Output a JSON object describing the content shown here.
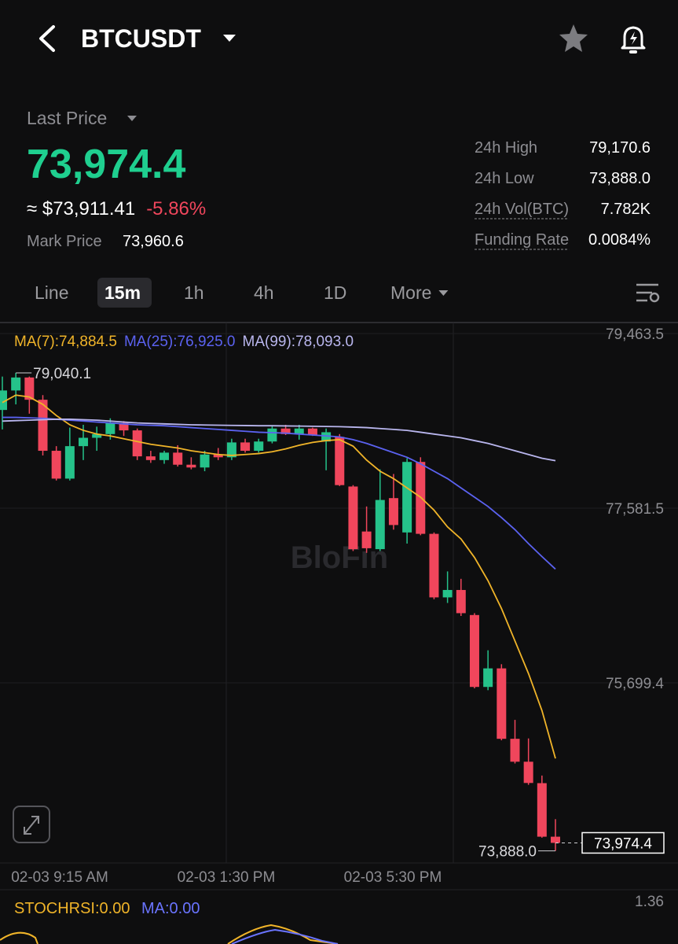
{
  "header": {
    "symbol": "BTCUSDT"
  },
  "ticker": {
    "last_price_label": "Last Price",
    "last_price": "73,974.4",
    "usd_price": "≈ $73,911.41",
    "change": "-5.86%",
    "mark_price_label": "Mark Price",
    "mark_price": "73,960.6"
  },
  "stats": [
    {
      "label": "24h High",
      "value": "79,170.6"
    },
    {
      "label": "24h Low",
      "value": "73,888.0"
    },
    {
      "label": "24h Vol(BTC)",
      "value": "7.782K"
    },
    {
      "label": "Funding Rate",
      "value": "0.0084%"
    }
  ],
  "tabs": [
    "Line",
    "15m",
    "1h",
    "4h",
    "1D",
    "More"
  ],
  "active_tab": 1,
  "chart_data": {
    "type": "candlestick",
    "watermark": "BloFin",
    "up_color": "#25c28a",
    "down_color": "#f0465c",
    "ylim": [
      73757.8,
      79582.2
    ],
    "yticks": [
      {
        "value": 79463.5,
        "label": "79,463.5"
      },
      {
        "value": 77581.5,
        "label": "77,581.5"
      },
      {
        "value": 75699.4,
        "label": "75,699.4"
      }
    ],
    "x_labels": [
      "02-03 9:15 AM",
      "02-03 1:30 PM",
      "02-03 5:30 PM"
    ],
    "high_mark": {
      "value": 79040.1,
      "label": "79,040.1"
    },
    "low_mark": {
      "value": 73888.0,
      "label": "73,888.0"
    },
    "last_mark": {
      "value": 73974.4,
      "label": "73,974.4"
    },
    "candles": [
      [
        78640,
        79000,
        78430,
        78850
      ],
      [
        78850,
        79040.1,
        78700,
        78990
      ],
      [
        78990,
        79000,
        78600,
        78750
      ],
      [
        78750,
        78800,
        78150,
        78200
      ],
      [
        78200,
        78250,
        77880,
        77900
      ],
      [
        77900,
        78450,
        77880,
        78250
      ],
      [
        78250,
        78480,
        78100,
        78340
      ],
      [
        78340,
        78460,
        78200,
        78380
      ],
      [
        78380,
        78550,
        78320,
        78500
      ],
      [
        78500,
        78520,
        78360,
        78420
      ],
      [
        78420,
        78440,
        78100,
        78140
      ],
      [
        78140,
        78200,
        78070,
        78100
      ],
      [
        78100,
        78200,
        78060,
        78180
      ],
      [
        78180,
        78260,
        78030,
        78050
      ],
      [
        78050,
        78130,
        78000,
        78020
      ],
      [
        78020,
        78200,
        77980,
        78160
      ],
      [
        78160,
        78230,
        78100,
        78130
      ],
      [
        78130,
        78330,
        78100,
        78290
      ],
      [
        78290,
        78330,
        78180,
        78200
      ],
      [
        78200,
        78330,
        78180,
        78300
      ],
      [
        78300,
        78470,
        78280,
        78440
      ],
      [
        78440,
        78480,
        78370,
        78380
      ],
      [
        78380,
        78480,
        78320,
        78440
      ],
      [
        78440,
        78450,
        78360,
        78370
      ],
      [
        78300,
        78440,
        77990,
        78400
      ],
      [
        78350,
        78380,
        77820,
        77830
      ],
      [
        77815,
        77830,
        77120,
        77140
      ],
      [
        77330,
        77600,
        77100,
        77150
      ],
      [
        77140,
        78000,
        77120,
        77670
      ],
      [
        77690,
        77950,
        77350,
        77400
      ],
      [
        77320,
        78120,
        77200,
        78080
      ],
      [
        78080,
        78130,
        77290,
        77305
      ],
      [
        77305,
        77320,
        76600,
        76620
      ],
      [
        76620,
        76900,
        76560,
        76700
      ],
      [
        76700,
        76820,
        76420,
        76450
      ],
      [
        76430,
        76450,
        75640,
        75655
      ],
      [
        75655,
        76050,
        75620,
        75855
      ],
      [
        75855,
        75900,
        75080,
        75096
      ],
      [
        75096,
        75300,
        74830,
        74849
      ],
      [
        74849,
        75100,
        74600,
        74620
      ],
      [
        74618,
        74700,
        74030,
        74041
      ],
      [
        74041,
        74230,
        73888.0,
        73974.4
      ]
    ],
    "series": [
      {
        "name": "MA(7):74,884.5",
        "color": "#f0b429",
        "values": [
          78720,
          78800,
          78780,
          78700,
          78580,
          78480,
          78420,
          78380,
          78360,
          78330,
          78300,
          78270,
          78250,
          78230,
          78200,
          78180,
          78160,
          78150,
          78160,
          78170,
          78190,
          78220,
          78260,
          78290,
          78310,
          78320,
          78250,
          78100,
          77980,
          77900,
          77800,
          77700,
          77560,
          77380,
          77250,
          77050,
          76800,
          76500,
          76150,
          75800,
          75400,
          74884.5
        ]
      },
      {
        "name": "MA(25):76,925.0",
        "color": "#5b62f0",
        "values": [
          78560,
          78560,
          78555,
          78550,
          78540,
          78530,
          78520,
          78510,
          78500,
          78490,
          78480,
          78475,
          78470,
          78460,
          78450,
          78440,
          78430,
          78420,
          78410,
          78400,
          78395,
          78390,
          78380,
          78370,
          78360,
          78350,
          78320,
          78280,
          78230,
          78180,
          78130,
          78060,
          77980,
          77900,
          77800,
          77700,
          77600,
          77480,
          77350,
          77200,
          77060,
          76925
        ]
      },
      {
        "name": "MA(99):78,093.0",
        "color": "#b9b6ee",
        "values": [
          78520,
          78525,
          78530,
          78535,
          78540,
          78540,
          78535,
          78530,
          78520,
          78510,
          78500,
          78495,
          78490,
          78485,
          78480,
          78478,
          78476,
          78474,
          78472,
          78470,
          78470,
          78468,
          78466,
          78464,
          78462,
          78460,
          78455,
          78450,
          78440,
          78430,
          78420,
          78400,
          78380,
          78360,
          78340,
          78310,
          78280,
          78240,
          78200,
          78160,
          78120,
          78093
        ]
      }
    ]
  },
  "indicator": {
    "name": "STOCHRSI:0.00",
    "ma": "MA:0.00",
    "scale": "1.36"
  }
}
